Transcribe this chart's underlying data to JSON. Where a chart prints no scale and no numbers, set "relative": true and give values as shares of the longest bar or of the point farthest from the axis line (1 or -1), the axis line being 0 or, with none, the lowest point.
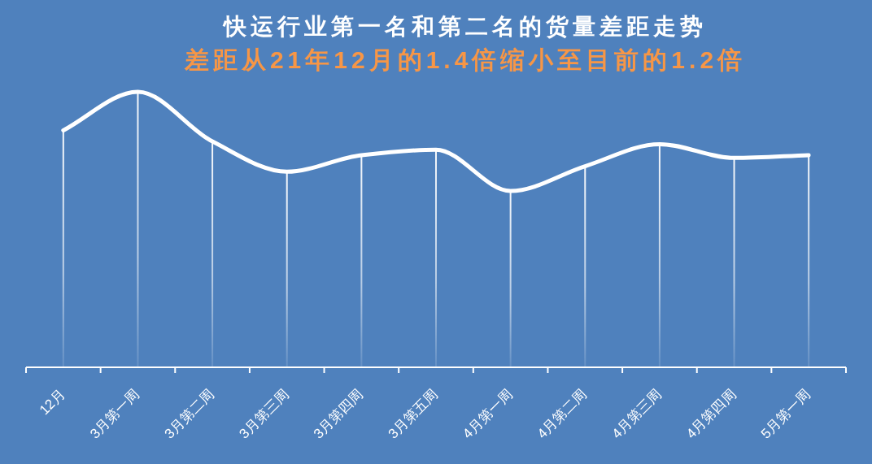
{
  "chart_data": {
    "type": "line",
    "title": "快运行业第一名和第二名的货量差距走势",
    "subtitle": "差距从21年12月的1.4倍缩小至目前的1.2倍",
    "categories": [
      "12月",
      "3月第一周",
      "3月第二周",
      "3月第三周",
      "3月第四周",
      "3月第五周",
      "4月第一周",
      "4月第二周",
      "4月第三周",
      "4月第四周",
      "5月第一周"
    ],
    "relative": true,
    "series": [
      {
        "type": "bar",
        "color": "#ffffff",
        "values": [
          0.86,
          1,
          0.82,
          0.71,
          0.77,
          0.79,
          0.64,
          0.73,
          0.81,
          0.76,
          0.77
        ]
      },
      {
        "color": "#ffffff",
        "values": [
          0.86,
          1,
          0.82,
          0.71,
          0.77,
          0.79,
          0.64,
          0.73,
          0.81,
          0.76,
          0.77
        ]
      }
    ]
  }
}
